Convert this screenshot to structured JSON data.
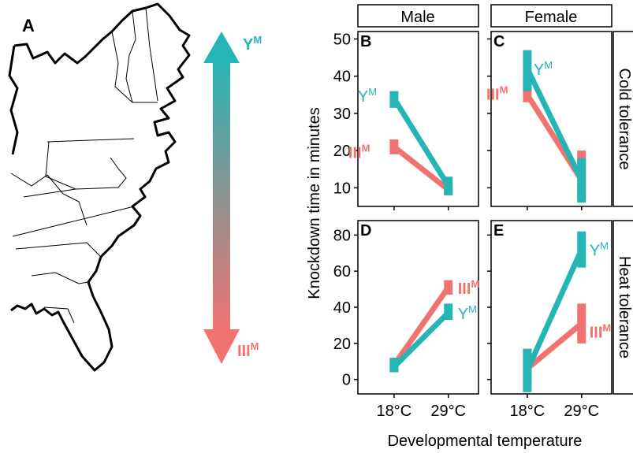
{
  "panel_a": {
    "label": "A",
    "top_label": "Y",
    "top_label_sup": "M",
    "bottom_label": "III",
    "bottom_label_sup": "M",
    "top_color": "#26b5b5",
    "bottom_color": "#f07370"
  },
  "chart_data": [
    {
      "type": "line",
      "panel_label": "B",
      "column": "Male",
      "row": "Cold tolerance",
      "categories": [
        "18°C",
        "29°C"
      ],
      "ylim": [
        5,
        52
      ],
      "yticks": [
        10,
        20,
        30,
        40,
        50
      ],
      "series": [
        {
          "name": "YM",
          "values": [
            34,
            10.5
          ],
          "err_low": [
            31.5,
            8
          ],
          "err_high": [
            36,
            13
          ]
        },
        {
          "name": "IIIM",
          "values": [
            21,
            9.5
          ],
          "err_low": [
            19,
            8
          ],
          "err_high": [
            23,
            11
          ]
        }
      ],
      "labels": [
        {
          "series": "YM",
          "text": "Y",
          "sup": "M"
        },
        {
          "series": "IIIM",
          "text": "III",
          "sup": "M"
        }
      ]
    },
    {
      "type": "line",
      "panel_label": "C",
      "column": "Female",
      "row": "Cold tolerance",
      "categories": [
        "18°C",
        "29°C"
      ],
      "ylim": [
        5,
        52
      ],
      "yticks": [
        10,
        20,
        30,
        40,
        50
      ],
      "series": [
        {
          "name": "YM",
          "values": [
            42,
            12
          ],
          "err_low": [
            36,
            6
          ],
          "err_high": [
            47,
            18
          ]
        },
        {
          "name": "IIIM",
          "values": [
            35,
            12
          ],
          "err_low": [
            33,
            7
          ],
          "err_high": [
            40,
            20
          ]
        }
      ],
      "labels": [
        {
          "series": "YM",
          "text": "Y",
          "sup": "M"
        },
        {
          "series": "IIIM",
          "text": "III",
          "sup": "M"
        }
      ]
    },
    {
      "type": "line",
      "panel_label": "D",
      "column": "Male",
      "row": "Heat tolerance",
      "categories": [
        "18°C",
        "29°C"
      ],
      "ylim": [
        -8,
        88
      ],
      "yticks": [
        0,
        20,
        40,
        60,
        80
      ],
      "series": [
        {
          "name": "YM",
          "values": [
            7,
            37
          ],
          "err_low": [
            4,
            33
          ],
          "err_high": [
            12,
            42
          ]
        },
        {
          "name": "IIIM",
          "values": [
            8,
            51
          ],
          "err_low": [
            4,
            47
          ],
          "err_high": [
            12,
            55
          ]
        }
      ],
      "labels": [
        {
          "series": "IIIM",
          "text": "III",
          "sup": "M"
        },
        {
          "series": "YM",
          "text": "Y",
          "sup": "M"
        }
      ]
    },
    {
      "type": "line",
      "panel_label": "E",
      "column": "Female",
      "row": "Heat tolerance",
      "categories": [
        "18°C",
        "29°C"
      ],
      "ylim": [
        -8,
        88
      ],
      "yticks": [
        0,
        20,
        40,
        60,
        80
      ],
      "series": [
        {
          "name": "YM",
          "values": [
            5,
            72
          ],
          "err_low": [
            -7,
            62
          ],
          "err_high": [
            17,
            82
          ]
        },
        {
          "name": "IIIM",
          "values": [
            6,
            31
          ],
          "err_low": [
            -5,
            20
          ],
          "err_high": [
            17,
            42
          ]
        }
      ],
      "labels": [
        {
          "series": "YM",
          "text": "Y",
          "sup": "M"
        },
        {
          "series": "IIIM",
          "text": "III",
          "sup": "M"
        }
      ]
    }
  ],
  "strips": {
    "columns": [
      "Male",
      "Female"
    ],
    "rows": [
      "Cold tolerance",
      "Heat tolerance"
    ]
  },
  "axes": {
    "ylabel": "Knockdown time in minutes",
    "xlabel": "Developmental temperature"
  },
  "colors": {
    "YM": "#26b5b5",
    "IIIM": "#f07370"
  }
}
